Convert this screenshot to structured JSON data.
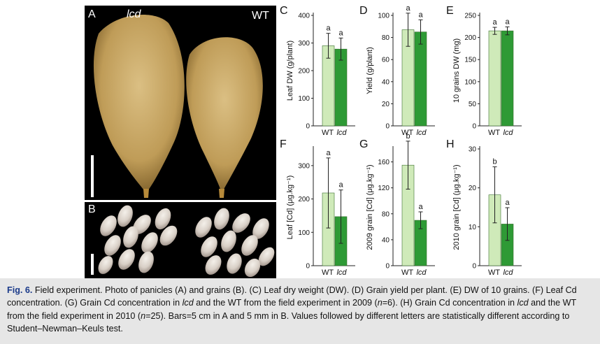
{
  "photos": {
    "A": {
      "label": "A",
      "left_label": "lcd",
      "right_label": "WT"
    },
    "B": {
      "label": "B"
    }
  },
  "chart_data": [
    {
      "panel": "C",
      "type": "bar",
      "categories": [
        "WT",
        "lcd"
      ],
      "values": [
        290,
        278
      ],
      "errors": [
        45,
        40
      ],
      "letters": [
        "a",
        "a"
      ],
      "ylabel": "Leaf DW (g/plant)",
      "ylim": [
        0,
        400
      ],
      "yticks": [
        0,
        100,
        200,
        300,
        400
      ]
    },
    {
      "panel": "D",
      "type": "bar",
      "categories": [
        "WT",
        "lcd"
      ],
      "values": [
        87,
        85
      ],
      "errors": [
        15,
        11
      ],
      "letters": [
        "a",
        "a"
      ],
      "ylabel": "Yield (g/plant)",
      "ylim": [
        0,
        100
      ],
      "yticks": [
        0,
        20,
        40,
        60,
        80,
        100
      ]
    },
    {
      "panel": "E",
      "type": "bar",
      "categories": [
        "WT",
        "lcd"
      ],
      "values": [
        215,
        215
      ],
      "errors": [
        8,
        9
      ],
      "letters": [
        "a",
        "a"
      ],
      "ylabel": "10 grains DW (mg)",
      "ylim": [
        0,
        250
      ],
      "yticks": [
        0,
        50,
        100,
        150,
        200,
        250
      ]
    },
    {
      "panel": "F",
      "type": "bar",
      "categories": [
        "WT",
        "lcd"
      ],
      "values": [
        218,
        147
      ],
      "errors": [
        105,
        80
      ],
      "letters": [
        "a",
        "a"
      ],
      "ylabel": "Leaf [Cd] (μg.kg⁻¹)",
      "ylim": [
        0,
        350
      ],
      "yticks": [
        0,
        100,
        200,
        300
      ]
    },
    {
      "panel": "G",
      "type": "bar",
      "categories": [
        "WT",
        "lcd"
      ],
      "values": [
        155,
        70
      ],
      "errors": [
        37,
        13
      ],
      "letters": [
        "b",
        "a"
      ],
      "ylabel": "2009 grain [Cd] (μg.kg⁻¹)",
      "ylim": [
        0,
        180
      ],
      "yticks": [
        0,
        40,
        80,
        120,
        160
      ]
    },
    {
      "panel": "H",
      "type": "bar",
      "categories": [
        "WT",
        "lcd"
      ],
      "values": [
        18.2,
        10.7
      ],
      "errors": [
        7.2,
        4.2
      ],
      "letters": [
        "b",
        "a"
      ],
      "ylabel": "2010 grain [Cd] (μg.kg⁻¹)",
      "ylim": [
        0,
        30
      ],
      "yticks": [
        0,
        10,
        20,
        30
      ]
    }
  ],
  "colors": {
    "wt": "#cfeab9",
    "lcd": "#2e9a35",
    "bar_stroke": "#3a6e2e"
  },
  "caption": {
    "fig": "Fig. 6.",
    "t1": " Field experiment. Photo of panicles (A) and grains (B). (C) Leaf dry weight (DW). (D) Grain yield per plant. (E) DW of 10 grains. (F) Leaf Cd concentration. (G) Grain Cd concentration in ",
    "lcd1": "lcd",
    "t2": " and the WT from the field experiment in 2009 (",
    "n1": "n",
    "t3": "=6). (H) Grain Cd concentration in ",
    "lcd2": "lcd",
    "t4": " and the WT from the field experiment in 2010 (",
    "n2": "n",
    "t5": "=25). Bars=5 cm in A and 5 mm in B. Values followed by different letters are statistically different according to Student–Newman–Keuls test."
  }
}
